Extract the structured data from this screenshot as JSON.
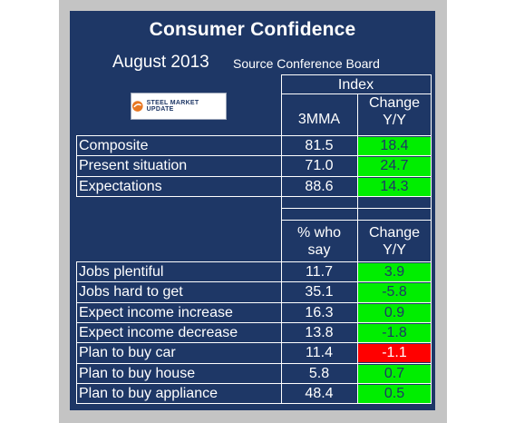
{
  "chart_data": {
    "type": "table",
    "title": "Consumer Confidence",
    "subtitle": "August 2013",
    "source": "Source Conference Board",
    "logo_text": "STEEL MARKET UPDATE",
    "index_header": "Index",
    "section1": {
      "col_value": "3MMA",
      "col_change": "Change Y/Y",
      "rows": [
        {
          "label": "Composite",
          "value": "81.5",
          "change": "18.4",
          "status": "green"
        },
        {
          "label": "Present situation",
          "value": "71.0",
          "change": "24.7",
          "status": "green"
        },
        {
          "label": "Expectations",
          "value": "88.6",
          "change": "14.3",
          "status": "green"
        }
      ]
    },
    "section2": {
      "col_value": "% who say",
      "col_change": "Change Y/Y",
      "rows": [
        {
          "label": "Jobs plentiful",
          "value": "11.7",
          "change": "3.9",
          "status": "green"
        },
        {
          "label": "Jobs hard to get",
          "value": "35.1",
          "change": "-5.8",
          "status": "green"
        },
        {
          "label": "Expect income increase",
          "value": "16.3",
          "change": "0.9",
          "status": "green"
        },
        {
          "label": "Expect income decrease",
          "value": "13.8",
          "change": "-1.8",
          "status": "green"
        },
        {
          "label": "Plan to buy car",
          "value": "11.4",
          "change": "-1.1",
          "status": "red"
        },
        {
          "label": "Plan to buy house",
          "value": "5.8",
          "change": "0.7",
          "status": "green"
        },
        {
          "label": "Plan to buy appliance",
          "value": "48.4",
          "change": "0.5",
          "status": "green"
        }
      ]
    },
    "colors": {
      "panel": "#1e3766",
      "frame": "#c4c4c4",
      "positive": "#00ee00",
      "negative": "#ff0000"
    }
  }
}
